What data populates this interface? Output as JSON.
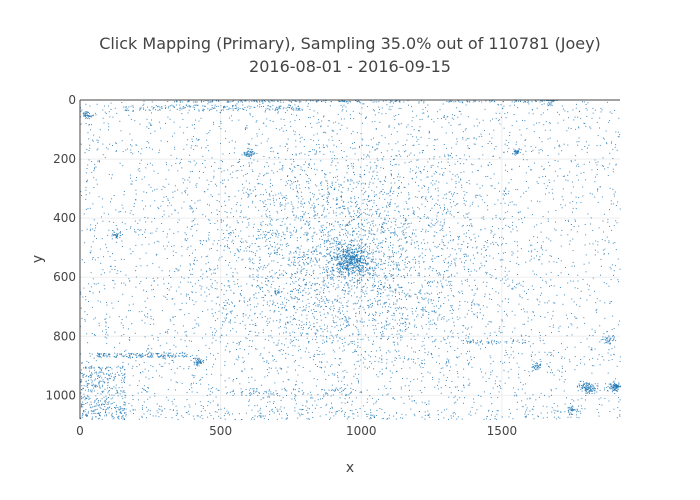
{
  "chart_data": {
    "type": "scatter",
    "title": "Click Mapping (Primary), Sampling 35.0% out of 110781 (Joey)",
    "subtitle": "2016-08-01 - 2016-09-15",
    "xlabel": "x",
    "ylabel": "y",
    "xlim": [
      0,
      1920
    ],
    "ylim": [
      1080,
      0
    ],
    "y_reversed": true,
    "x_ticks": [
      "0",
      "500",
      "1000",
      "1500"
    ],
    "y_ticks": [
      "0",
      "200",
      "400",
      "600",
      "800",
      "1000"
    ],
    "grid": true,
    "marker_color": "#1f77b4",
    "series": [
      {
        "points_shown": 38774,
        "density_clusters": [
          {
            "x": 960,
            "y": 540,
            "spread": 34,
            "weight": 0.055
          },
          {
            "x": 960,
            "y": 540,
            "spread": 260,
            "weight": 0.3
          },
          {
            "x": 1800,
            "y": 970,
            "spread": 14,
            "weight": 0.012
          },
          {
            "x": 1900,
            "y": 970,
            "spread": 10,
            "weight": 0.01
          },
          {
            "x": 600,
            "y": 180,
            "spread": 10,
            "weight": 0.006
          },
          {
            "x": 1550,
            "y": 175,
            "spread": 8,
            "weight": 0.004
          },
          {
            "x": 130,
            "y": 455,
            "spread": 9,
            "weight": 0.004
          },
          {
            "x": 420,
            "y": 885,
            "spread": 10,
            "weight": 0.006
          },
          {
            "x": 700,
            "y": 650,
            "spread": 8,
            "weight": 0.002
          },
          {
            "x": 1750,
            "y": 1050,
            "spread": 12,
            "weight": 0.004
          },
          {
            "x": 1620,
            "y": 900,
            "spread": 10,
            "weight": 0.004
          },
          {
            "x": 20,
            "y": 50,
            "spread": 10,
            "weight": 0.005
          },
          {
            "x": 1670,
            "y": 0,
            "spread": 12,
            "weight": 0.004
          },
          {
            "x": 1880,
            "y": 810,
            "spread": 12,
            "weight": 0.004
          }
        ],
        "density_bands": [
          {
            "x0": 0,
            "x1": 160,
            "y0": 900,
            "y1": 1080,
            "weight": 0.04
          },
          {
            "x0": 60,
            "x1": 380,
            "y0": 855,
            "y1": 870,
            "weight": 0.018
          },
          {
            "x0": 150,
            "x1": 790,
            "y0": 15,
            "y1": 35,
            "weight": 0.02
          },
          {
            "x0": 330,
            "x1": 1650,
            "y0": 0,
            "y1": 6,
            "weight": 0.02
          },
          {
            "x0": 1350,
            "x1": 1600,
            "y0": 810,
            "y1": 825,
            "weight": 0.006
          },
          {
            "x0": 150,
            "x1": 1750,
            "y0": 1045,
            "y1": 1080,
            "weight": 0.02
          },
          {
            "x0": 440,
            "x1": 1000,
            "y0": 975,
            "y1": 1000,
            "weight": 0.01
          }
        ],
        "background_weight": 0.43
      }
    ]
  }
}
